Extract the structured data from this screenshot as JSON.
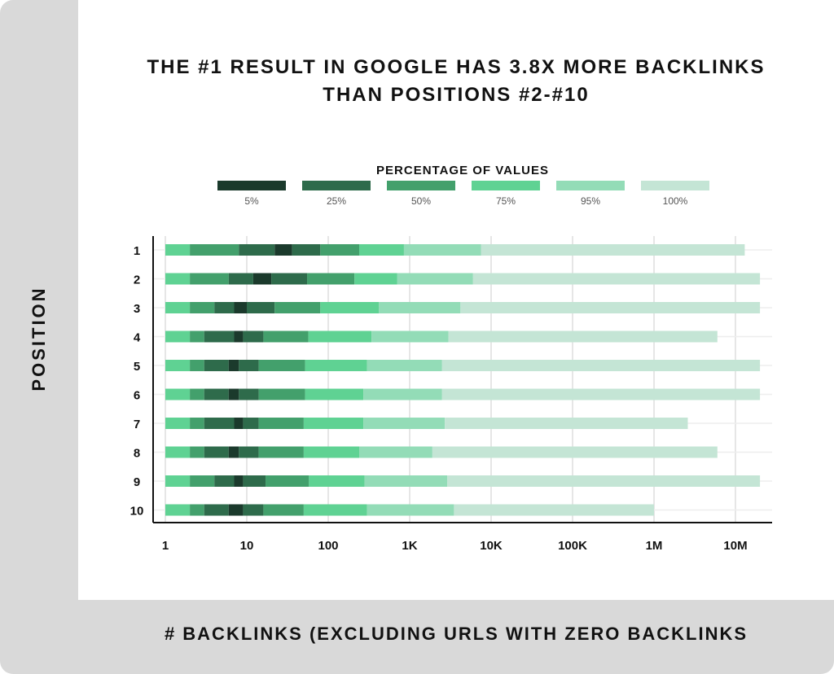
{
  "title_lines": [
    "THE #1 RESULT IN GOOGLE HAS 3.8X MORE BACKLINKS",
    "THAN POSITIONS #2-#10"
  ],
  "chart_data": {
    "type": "bar",
    "orientation": "horizontal-stacked-range",
    "ylabel": "POSITION",
    "xlabel": "# BACKLINKS (EXCLUDING URLS WITH ZERO BACKLINKS",
    "x_scale": "log",
    "xlim": [
      1,
      30000000
    ],
    "x_ticks": [
      1,
      10,
      100,
      1000,
      10000,
      100000,
      1000000,
      10000000
    ],
    "x_tick_labels": [
      "1",
      "10",
      "100",
      "1K",
      "10K",
      "100K",
      "1M",
      "10M"
    ],
    "legend_title": "PERCENTAGE OF VALUES",
    "legend_position": "top-center",
    "grid": "vertical",
    "series": [
      {
        "name": "5%",
        "color": "#1b3a2c"
      },
      {
        "name": "25%",
        "color": "#2e6b4b"
      },
      {
        "name": "50%",
        "color": "#43a06c"
      },
      {
        "name": "75%",
        "color": "#5fd293"
      },
      {
        "name": "95%",
        "color": "#93dcb7"
      },
      {
        "name": "100%",
        "color": "#c4e5d5"
      }
    ],
    "rows": [
      {
        "label": "1",
        "bounds": [
          1,
          2,
          8,
          22,
          36,
          80,
          240,
          850,
          7500,
          13000000
        ]
      },
      {
        "label": "2",
        "bounds": [
          1,
          2,
          6,
          12,
          20,
          55,
          210,
          700,
          6000,
          20000000
        ]
      },
      {
        "label": "3",
        "bounds": [
          1,
          2,
          4,
          7,
          10,
          22,
          80,
          420,
          4200,
          20000000
        ]
      },
      {
        "label": "4",
        "bounds": [
          1,
          2,
          3,
          7,
          9,
          16,
          57,
          340,
          3000,
          6000000
        ]
      },
      {
        "label": "5",
        "bounds": [
          1,
          2,
          3,
          6,
          8,
          14,
          52,
          300,
          2500,
          20000000
        ]
      },
      {
        "label": "6",
        "bounds": [
          1,
          2,
          3,
          6,
          8,
          14,
          52,
          270,
          2500,
          20000000
        ]
      },
      {
        "label": "7",
        "bounds": [
          1,
          2,
          3,
          7,
          9,
          14,
          50,
          270,
          2700,
          2600000
        ]
      },
      {
        "label": "8",
        "bounds": [
          1,
          2,
          3,
          6,
          8,
          14,
          50,
          240,
          1900,
          6000000
        ]
      },
      {
        "label": "9",
        "bounds": [
          1,
          2,
          4,
          7,
          9,
          17,
          58,
          280,
          2900,
          20000000
        ]
      },
      {
        "label": "10",
        "bounds": [
          1,
          2,
          3,
          6,
          9,
          16,
          50,
          300,
          3500,
          1000000
        ]
      }
    ]
  }
}
